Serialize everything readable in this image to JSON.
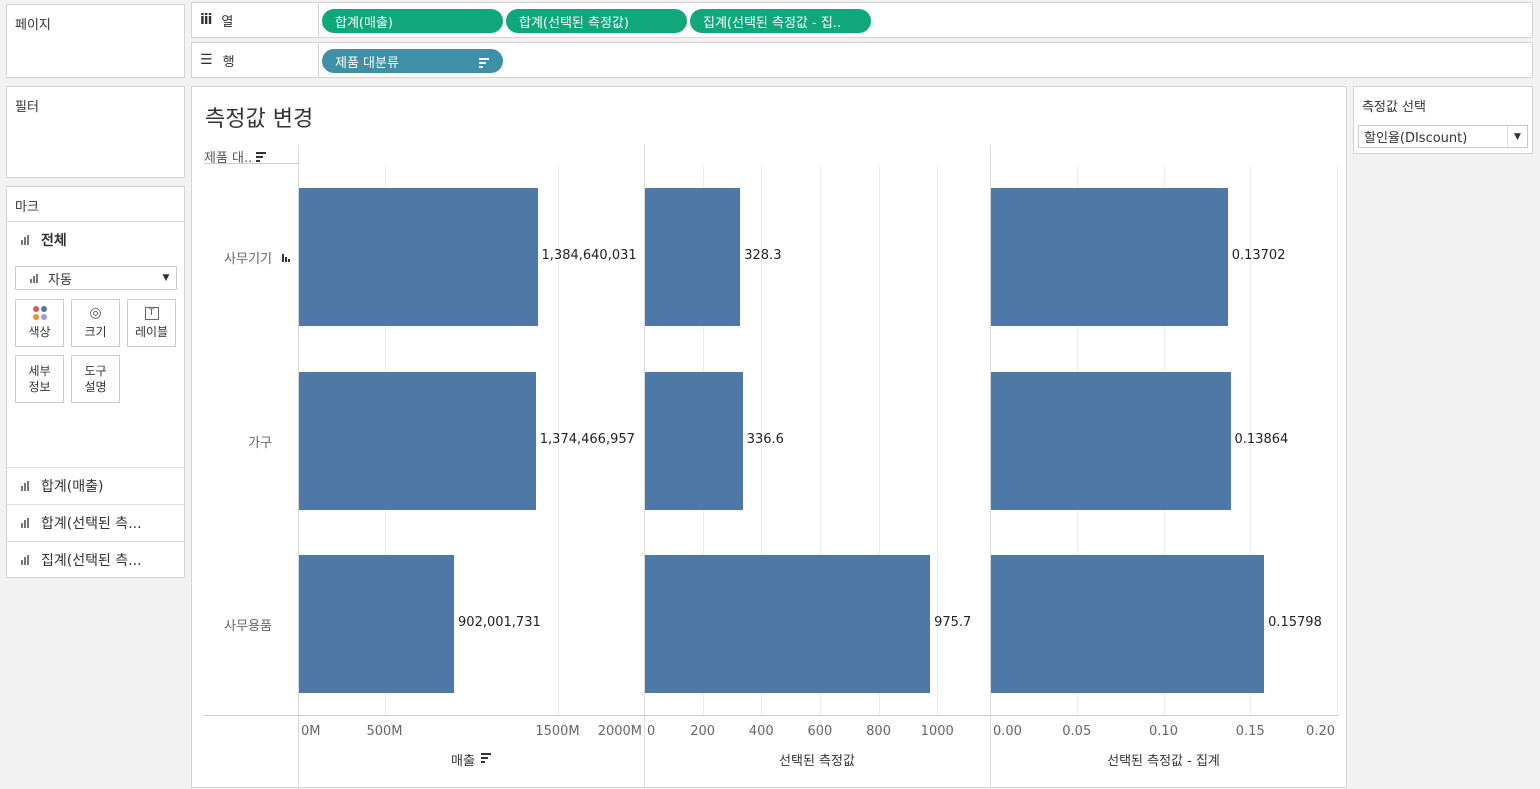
{
  "pages_panel": {
    "title": "페이지"
  },
  "filters_panel": {
    "title": "필터"
  },
  "columns_shelf": {
    "label": "열",
    "pills": [
      "합계(매출)",
      "합계(선택된 측정값)",
      "집계(선택된 측정값 - 집.."
    ]
  },
  "rows_shelf": {
    "label": "행",
    "pills": [
      "제품 대분류"
    ]
  },
  "marks": {
    "title": "마크",
    "all_label": "전체",
    "mark_type": "자동",
    "buttons": {
      "color": "색상",
      "size": "크기",
      "label": "레이블",
      "detail": "세부\n정보",
      "tooltip": "도구\n설명"
    },
    "cards": [
      "합계(매출)",
      "합계(선택된 측...",
      "집계(선택된 측..."
    ]
  },
  "parameter": {
    "title": "측정값 선택",
    "value": "할인율(DIscount)"
  },
  "viz": {
    "title": "측정값 변경",
    "row_header": "제품 대..",
    "categories": [
      "사무기기",
      "가구",
      "사무용품"
    ]
  },
  "chart_data": [
    {
      "type": "bar",
      "orientation": "horizontal",
      "categories": [
        "사무기기",
        "가구",
        "사무용품"
      ],
      "values": [
        1384640031,
        1374466957,
        902001731
      ],
      "labels": [
        "1,384,640,031",
        "1,374,466,957",
        "902,001,731"
      ],
      "xlabel": "매출",
      "xlim": [
        0,
        2000000000
      ],
      "ticks": [
        "0M",
        "500M",
        "1500M",
        "2000M"
      ],
      "tick_values": [
        0,
        500000000,
        1500000000,
        2000000000
      ],
      "color": "#4e79a7"
    },
    {
      "type": "bar",
      "orientation": "horizontal",
      "categories": [
        "사무기기",
        "가구",
        "사무용품"
      ],
      "values": [
        328.3,
        336.6,
        975.7
      ],
      "labels": [
        "328.3",
        "336.6",
        "975.7"
      ],
      "xlabel": "선택된 측정값",
      "xlim": [
        0,
        1180
      ],
      "ticks": [
        "0",
        "200",
        "400",
        "600",
        "800",
        "1000"
      ],
      "tick_values": [
        0,
        200,
        400,
        600,
        800,
        1000
      ],
      "color": "#4e79a7"
    },
    {
      "type": "bar",
      "orientation": "horizontal",
      "categories": [
        "사무기기",
        "가구",
        "사무용품"
      ],
      "values": [
        0.13702,
        0.13864,
        0.15798
      ],
      "labels": [
        "0.13702",
        "0.13864",
        "0.15798"
      ],
      "xlabel": "선택된 측정값 - 집계",
      "xlim": [
        0,
        0.2
      ],
      "ticks": [
        "0.00",
        "0.05",
        "0.10",
        "0.15",
        "0.20"
      ],
      "tick_values": [
        0,
        0.05,
        0.1,
        0.15,
        0.2
      ],
      "color": "#4e79a7"
    }
  ]
}
